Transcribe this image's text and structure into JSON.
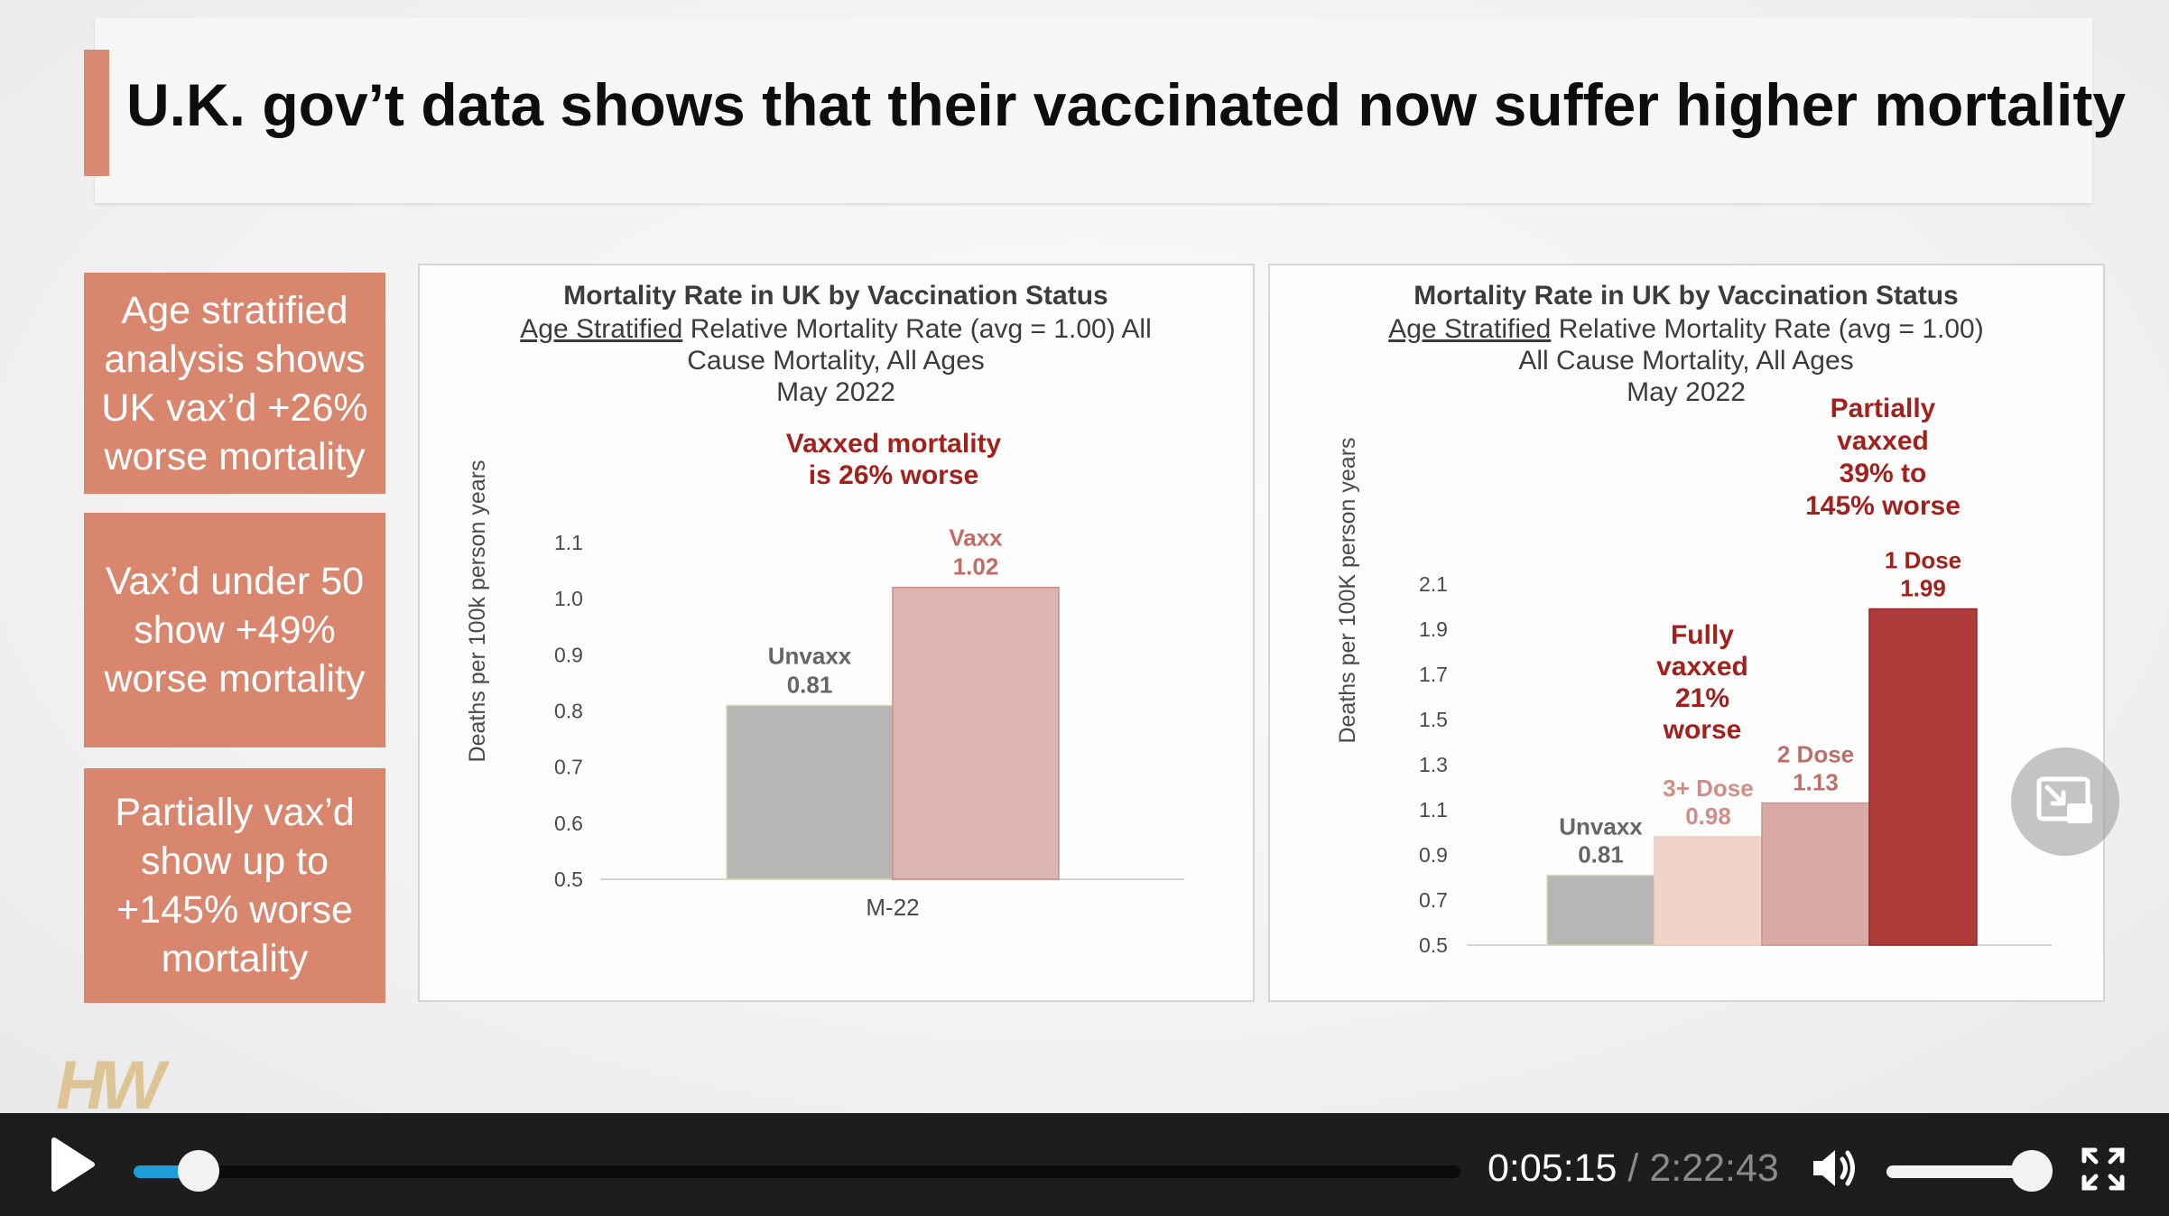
{
  "slide": {
    "title": "U.K. gov’t data shows that their vaccinated now suffer higher mortality",
    "callouts": [
      "Age stratified analysis shows UK vax’d +26% worse mortality",
      "Vax’d under 50 show +49% worse mortality",
      "Partially vax’d show up to +145% worse mortality"
    ],
    "watermark": "HW"
  },
  "chart_data": [
    {
      "type": "bar",
      "title": "Mortality Rate in UK by Vaccination Status",
      "subtitle_underlined": "Age Stratified",
      "subtitle_line1": " Relative Mortality Rate (avg = 1.00) All",
      "subtitle_line2": "Cause Mortality, All Ages",
      "subtitle_line3": "May 2022",
      "annotation_line1": "Vaxxed  mortality",
      "annotation_line2": "is 26% worse",
      "ylabel": "Deaths per 100k person years",
      "ylim": [
        0.5,
        1.1
      ],
      "yticks": [
        "1.1",
        "1.0",
        "0.9",
        "0.8",
        "0.7",
        "0.6",
        "0.5"
      ],
      "categories": [
        "M-22"
      ],
      "series": [
        {
          "name": "Unvaxx",
          "values": [
            0.81
          ],
          "label": "0.81",
          "color": "#b6b7b5"
        },
        {
          "name": "Vaxx",
          "values": [
            1.02
          ],
          "label": "1.02",
          "color": "#ddb5b0"
        }
      ]
    },
    {
      "type": "bar",
      "title": "Mortality Rate in UK by Vaccination Status",
      "subtitle_underlined": "Age Stratified",
      "subtitle_line1": " Relative Mortality Rate (avg = 1.00)",
      "subtitle_line2": "All Cause Mortality, All Ages",
      "subtitle_line3": "May 2022",
      "annotation_full": [
        "Fully",
        "vaxxed",
        "21%",
        "worse"
      ],
      "annotation_partial": [
        "Partially",
        "vaxxed",
        "39% to",
        "145% worse"
      ],
      "ylabel": "Deaths per 100K person years",
      "ylim": [
        0.5,
        2.1
      ],
      "yticks": [
        "2.1",
        "1.9",
        "1.7",
        "1.5",
        "1.3",
        "1.1",
        "0.9",
        "0.7",
        "0.5"
      ],
      "series": [
        {
          "name": "Unvaxx",
          "values": [
            0.81
          ],
          "label": "0.81",
          "color": "#b6b7b5",
          "label_color": "#666666"
        },
        {
          "name": "3+ Dose",
          "values": [
            0.98
          ],
          "label": "0.98",
          "color": "#f0d3c9",
          "label_color": "#cf8e86"
        },
        {
          "name": "2 Dose",
          "values": [
            1.13
          ],
          "label": "1.13",
          "color": "#d9aaa5",
          "label_color": "#bd6f69"
        },
        {
          "name": "1 Dose",
          "values": [
            1.99
          ],
          "label": "1.99",
          "color": "#ae3c3a",
          "label_color": "#a3211d"
        }
      ]
    }
  ],
  "player": {
    "current_time": "0:05:15",
    "separator": "/",
    "duration": "2:22:43",
    "progress": 0.0368,
    "volume": 1.0
  }
}
